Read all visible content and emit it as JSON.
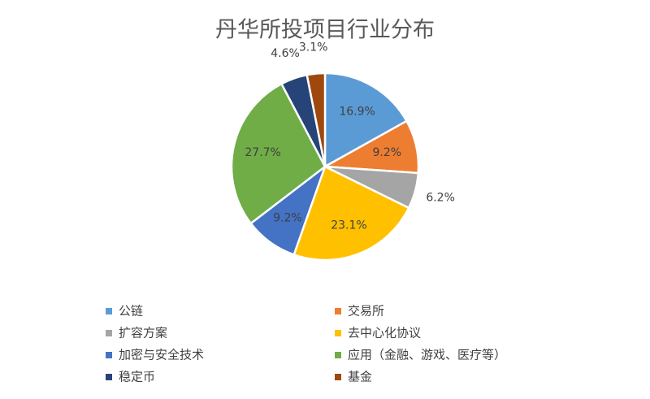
{
  "chart_data": {
    "type": "pie",
    "title": "丹华所投项目行业分布",
    "categories": [
      "公链",
      "交易所",
      "扩容方案",
      "去中心化协议",
      "加密与安全技术",
      "应用（金融、游戏、医疗等）",
      "稳定币",
      "基金"
    ],
    "values": [
      16.9,
      9.2,
      6.2,
      23.1,
      9.2,
      27.7,
      4.6,
      3.1
    ],
    "value_labels": [
      "16.9%",
      "9.2%",
      "6.2%",
      "23.1%",
      "9.2%",
      "27.7%",
      "4.6%",
      "3.1%"
    ],
    "colors": [
      "#5b9bd5",
      "#ed7d31",
      "#a5a5a5",
      "#ffc000",
      "#4472c4",
      "#70ad47",
      "#264478",
      "#9e480e"
    ],
    "legend": "bottom"
  }
}
